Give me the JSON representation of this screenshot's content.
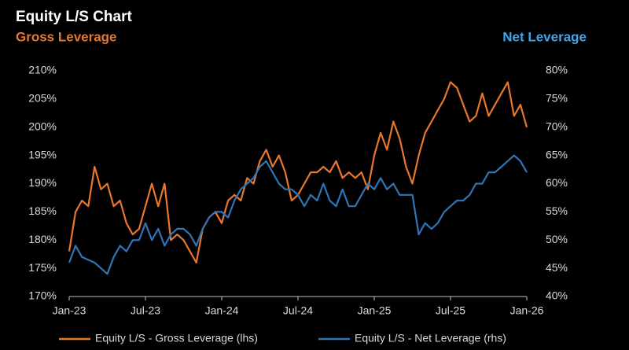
{
  "chart_data": {
    "type": "line",
    "title": "Equity L/S Chart",
    "ylabel": "Gross Leverage",
    "y2label": "Net Leverage",
    "x": [
      0,
      0.5,
      1,
      1.5,
      2,
      2.5,
      3,
      3.5,
      4,
      4.5,
      5,
      5.5,
      6,
      6.5,
      7,
      7.5,
      8,
      8.5,
      9,
      9.5,
      10,
      10.5,
      11,
      11.5,
      12,
      12.5,
      13,
      13.5,
      14,
      14.5,
      15,
      15.5,
      16,
      16.5,
      17,
      17.5,
      18,
      18.5,
      19,
      19.5,
      20,
      20.5,
      21,
      21.5,
      22,
      22.5,
      23,
      23.5,
      24,
      24.5,
      25,
      25.5,
      26,
      26.5,
      27,
      27.5,
      28,
      28.5,
      29,
      29.5,
      30,
      30.5,
      31,
      31.5,
      32,
      32.5,
      33,
      33.5,
      34,
      34.5,
      35,
      35.5,
      36
    ],
    "xlim": [
      0,
      36
    ],
    "xticks": [
      {
        "value": 0,
        "label": "Jan-23"
      },
      {
        "value": 6,
        "label": "Jul-23"
      },
      {
        "value": 12,
        "label": "Jan-24"
      },
      {
        "value": 18,
        "label": "Jul-24"
      },
      {
        "value": 24,
        "label": "Jan-25"
      },
      {
        "value": 30,
        "label": "Jul-25"
      },
      {
        "value": 36,
        "label": "Jan-26"
      }
    ],
    "ylim": [
      170,
      210
    ],
    "yticks": [
      {
        "value": 170,
        "label": "170%"
      },
      {
        "value": 175,
        "label": "175%"
      },
      {
        "value": 180,
        "label": "180%"
      },
      {
        "value": 185,
        "label": "185%"
      },
      {
        "value": 190,
        "label": "190%"
      },
      {
        "value": 195,
        "label": "195%"
      },
      {
        "value": 200,
        "label": "200%"
      },
      {
        "value": 205,
        "label": "205%"
      },
      {
        "value": 210,
        "label": "210%"
      }
    ],
    "y2lim": [
      40,
      80
    ],
    "y2ticks": [
      {
        "value": 40,
        "label": "40%"
      },
      {
        "value": 45,
        "label": "45%"
      },
      {
        "value": 50,
        "label": "50%"
      },
      {
        "value": 55,
        "label": "55%"
      },
      {
        "value": 60,
        "label": "60%"
      },
      {
        "value": 65,
        "label": "65%"
      },
      {
        "value": 70,
        "label": "70%"
      },
      {
        "value": 75,
        "label": "75%"
      },
      {
        "value": 80,
        "label": "80%"
      }
    ],
    "grid": false,
    "legend": "bottom",
    "series": [
      {
        "name": "Equity L/S - Gross Leverage (lhs)",
        "color": "#e8772e",
        "values": [
          178,
          185,
          187,
          186,
          193,
          189,
          190,
          186,
          187,
          183,
          181,
          182,
          186,
          190,
          186,
          190,
          180,
          181,
          180,
          178,
          176,
          182,
          184,
          185,
          183,
          187,
          188,
          187,
          191,
          190,
          194,
          196,
          193,
          195,
          192,
          187,
          188,
          190,
          192,
          192,
          193,
          192,
          194,
          191,
          192,
          191,
          192,
          189,
          195,
          199,
          196,
          201,
          198,
          193,
          190,
          195,
          199,
          201,
          203,
          205,
          208,
          207,
          204,
          201,
          202,
          206,
          202,
          204,
          206,
          208,
          202,
          204,
          200
        ]
      },
      {
        "name": "Equity L/S - Net Leverage (rhs)",
        "color": "#2f75b5",
        "axis": "y2",
        "values": [
          46,
          49,
          47,
          46.5,
          46,
          45,
          44,
          47,
          49,
          48,
          50,
          50,
          53,
          50,
          52,
          49,
          51,
          52,
          52,
          51,
          49,
          52,
          54,
          55,
          55,
          54,
          57,
          59,
          60,
          61,
          63,
          64,
          62,
          60,
          59,
          59,
          58,
          56,
          58,
          57,
          60,
          57,
          56,
          59,
          56,
          56,
          58,
          60,
          59,
          61,
          59,
          60,
          58,
          58,
          58,
          51,
          53,
          52,
          53,
          55,
          56,
          57,
          57,
          58,
          60,
          60,
          62,
          62,
          63,
          64,
          65,
          64,
          62
        ]
      }
    ]
  }
}
